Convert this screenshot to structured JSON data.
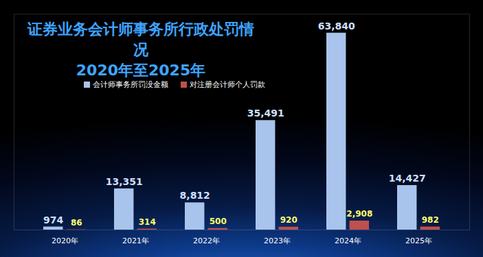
{
  "chart_data": {
    "type": "bar",
    "title": "证券业务会计师事务所行政处罚情况",
    "subtitle": "2020年至2025年",
    "categories": [
      "2020年",
      "2021年",
      "2022年",
      "2023年",
      "2024年",
      "2025年"
    ],
    "series": [
      {
        "name": "会计师事务所罚没金额",
        "color": "#a9c4ec",
        "values": [
          974,
          13351,
          8812,
          35491,
          63840,
          14427
        ],
        "value_labels": [
          "974",
          "13,351",
          "8,812",
          "35,491",
          "63,840",
          "14,427"
        ]
      },
      {
        "name": "对注册会计师个人罚款",
        "color": "#c0504d",
        "values": [
          86,
          314,
          500,
          920,
          2908,
          982
        ],
        "value_labels": [
          "86",
          "314",
          "500",
          "920",
          "2,908",
          "982"
        ]
      }
    ],
    "ylim": [
      0,
      70000
    ],
    "data_labels": true,
    "tick_labels": "x",
    "legend": "top"
  }
}
